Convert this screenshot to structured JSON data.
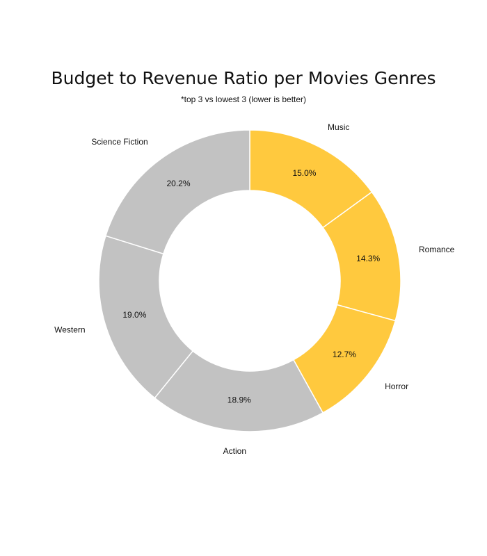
{
  "chart_data": {
    "type": "pie",
    "donut": true,
    "title": "Budget to Revenue Ratio per Movies Genres",
    "subtitle": "*top 3 vs lowest 3 (lower is better)",
    "categories": [
      "Music",
      "Romance",
      "Horror",
      "Action",
      "Western",
      "Science Fiction"
    ],
    "values": [
      15.0,
      14.3,
      12.7,
      18.9,
      19.0,
      20.2
    ],
    "value_labels": [
      "15.0%",
      "14.3%",
      "12.7%",
      "18.9%",
      "19.0%",
      "20.2%"
    ],
    "start_angle": "top",
    "direction": "clockwise",
    "colors": [
      "#FFC93E",
      "#FFC93E",
      "#FFC93E",
      "#C2C2C2",
      "#C2C2C2",
      "#C2C2C2"
    ],
    "legend": "none"
  }
}
